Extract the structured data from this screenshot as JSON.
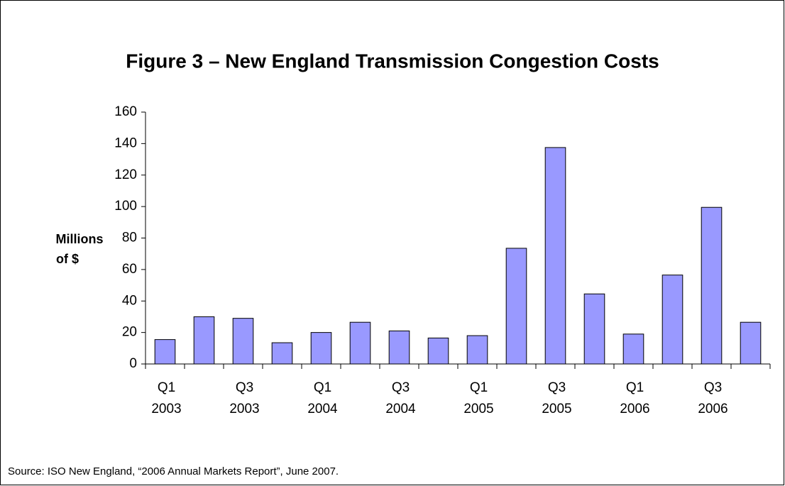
{
  "chart_data": {
    "type": "bar",
    "title": "Figure 3 – New England Transmission Congestion Costs",
    "y_label": [
      "Millions",
      "of $"
    ],
    "source": "Source: ISO New England, “2006 Annual Markets Report”, June 2007.",
    "categories": [
      [
        "Q1",
        "2003"
      ],
      null,
      [
        "Q3",
        "2003"
      ],
      null,
      [
        "Q1",
        "2004"
      ],
      null,
      [
        "Q3",
        "2004"
      ],
      null,
      [
        "Q1",
        "2005"
      ],
      null,
      [
        "Q3",
        "2005"
      ],
      null,
      [
        "Q1",
        "2006"
      ],
      null,
      [
        "Q3",
        "2006"
      ],
      null
    ],
    "values": [
      15.5,
      30,
      29,
      13.5,
      20,
      26.5,
      21,
      16.5,
      18,
      73.5,
      137.5,
      44.5,
      19,
      56.5,
      99.5,
      26.5
    ],
    "color": "#9999ff",
    "ylim": [
      0,
      160
    ],
    "yticks": [
      0,
      20,
      40,
      60,
      80,
      100,
      120,
      140,
      160
    ],
    "grid": false
  }
}
